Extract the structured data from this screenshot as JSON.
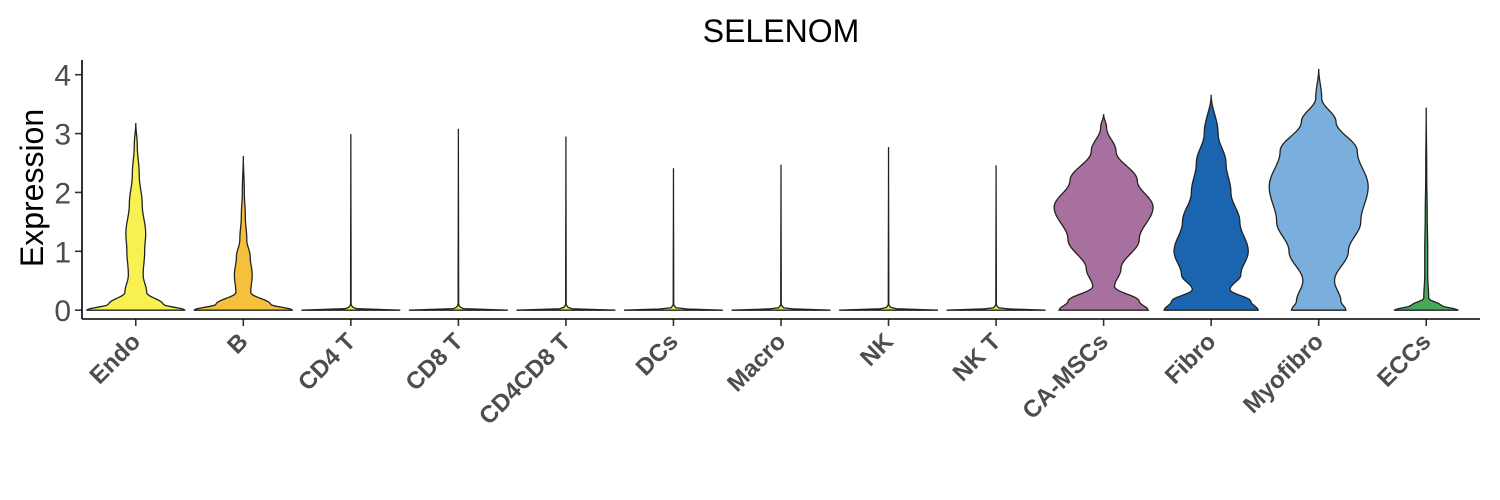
{
  "chart_data": {
    "type": "violin",
    "title": "SELENOM",
    "xlabel": "",
    "ylabel": "Expression",
    "ylim": [
      -0.15,
      4.25
    ],
    "yticks": [
      0,
      1,
      2,
      3,
      4
    ],
    "grid": false,
    "legend": "none",
    "categories": [
      "Endo",
      "B",
      "CD4 T",
      "CD8 T",
      "CD4CD8 T",
      "DCs",
      "Macro",
      "NK",
      "NK T",
      "CA-MSCs",
      "Fibro",
      "Myofibro",
      "ECCs"
    ],
    "colors": [
      "#F7F252",
      "#F5C13D",
      "#E8E84A",
      "#E8E84A",
      "#E8E84A",
      "#E8E84A",
      "#E8E84A",
      "#E8E84A",
      "#E8E84A",
      "#A8709E",
      "#1B65B0",
      "#7AAFDD",
      "#45A85A"
    ],
    "max_values": [
      3.18,
      2.62,
      2.99,
      3.08,
      2.95,
      2.41,
      2.47,
      2.77,
      2.46,
      3.33,
      3.66,
      4.1,
      3.44
    ],
    "density_profiles": [
      [
        [
          0,
          1.0
        ],
        [
          0.1,
          0.55
        ],
        [
          0.3,
          0.22
        ],
        [
          0.6,
          0.15
        ],
        [
          1.0,
          0.18
        ],
        [
          1.3,
          0.2
        ],
        [
          1.8,
          0.13
        ],
        [
          2.3,
          0.07
        ],
        [
          2.8,
          0.03
        ],
        [
          3.18,
          0.0
        ]
      ],
      [
        [
          0,
          1.0
        ],
        [
          0.1,
          0.55
        ],
        [
          0.3,
          0.15
        ],
        [
          0.6,
          0.18
        ],
        [
          0.9,
          0.14
        ],
        [
          1.2,
          0.07
        ],
        [
          1.6,
          0.04
        ],
        [
          2.0,
          0.02
        ],
        [
          2.62,
          0.0
        ]
      ],
      [
        [
          0,
          1.0
        ],
        [
          0.03,
          0.05
        ],
        [
          0.1,
          0.005
        ],
        [
          2.99,
          0.0
        ]
      ],
      [
        [
          0,
          1.0
        ],
        [
          0.03,
          0.05
        ],
        [
          0.1,
          0.005
        ],
        [
          3.08,
          0.0
        ]
      ],
      [
        [
          0,
          1.0
        ],
        [
          0.03,
          0.05
        ],
        [
          0.1,
          0.005
        ],
        [
          2.95,
          0.0
        ]
      ],
      [
        [
          0,
          1.0
        ],
        [
          0.03,
          0.05
        ],
        [
          0.1,
          0.005
        ],
        [
          2.41,
          0.0
        ]
      ],
      [
        [
          0,
          1.0
        ],
        [
          0.03,
          0.05
        ],
        [
          0.1,
          0.005
        ],
        [
          2.47,
          0.0
        ]
      ],
      [
        [
          0,
          1.0
        ],
        [
          0.03,
          0.05
        ],
        [
          0.1,
          0.005
        ],
        [
          2.77,
          0.0
        ]
      ],
      [
        [
          0,
          1.0
        ],
        [
          0.03,
          0.05
        ],
        [
          0.1,
          0.005
        ],
        [
          2.46,
          0.0
        ]
      ],
      [
        [
          0,
          0.9
        ],
        [
          0.15,
          0.72
        ],
        [
          0.4,
          0.22
        ],
        [
          0.7,
          0.35
        ],
        [
          1.2,
          0.72
        ],
        [
          1.75,
          1.0
        ],
        [
          2.2,
          0.68
        ],
        [
          2.7,
          0.25
        ],
        [
          3.1,
          0.06
        ],
        [
          3.33,
          0.0
        ]
      ],
      [
        [
          0,
          0.95
        ],
        [
          0.15,
          0.8
        ],
        [
          0.35,
          0.38
        ],
        [
          0.6,
          0.6
        ],
        [
          1.0,
          0.75
        ],
        [
          1.5,
          0.58
        ],
        [
          2.0,
          0.4
        ],
        [
          2.5,
          0.3
        ],
        [
          3.0,
          0.14
        ],
        [
          3.66,
          0.0
        ]
      ],
      [
        [
          0,
          0.55
        ],
        [
          0.15,
          0.45
        ],
        [
          0.5,
          0.32
        ],
        [
          1.0,
          0.6
        ],
        [
          1.5,
          0.85
        ],
        [
          2.1,
          1.0
        ],
        [
          2.7,
          0.78
        ],
        [
          3.2,
          0.35
        ],
        [
          3.6,
          0.06
        ],
        [
          4.1,
          0.0
        ]
      ],
      [
        [
          0,
          0.65
        ],
        [
          0.08,
          0.3
        ],
        [
          0.2,
          0.05
        ],
        [
          0.6,
          0.03
        ],
        [
          1.0,
          0.03
        ],
        [
          1.6,
          0.02
        ],
        [
          2.3,
          0.01
        ],
        [
          3.44,
          0.0
        ]
      ]
    ]
  }
}
